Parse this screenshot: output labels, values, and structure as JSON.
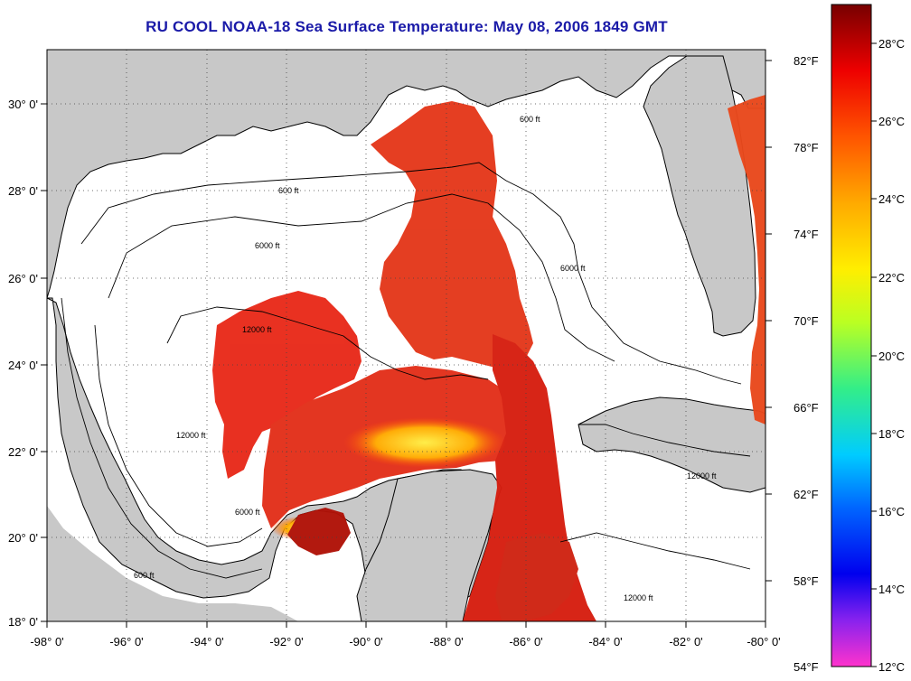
{
  "title": "RU COOL  NOAA-18  Sea Surface Temperature:  May 08, 2006 1849 GMT",
  "map": {
    "lon_range": [
      -98,
      -80
    ],
    "lat_range": [
      18,
      31
    ],
    "lon_ticks": [
      "-98° 0'",
      "-96° 0'",
      "-94° 0'",
      "-92° 0'",
      "-90° 0'",
      "-88° 0'",
      "-86° 0'",
      "-84° 0'",
      "-82° 0'",
      "-80° 0'"
    ],
    "lat_ticks": [
      "18° 0'",
      "20° 0'",
      "22° 0'",
      "24° 0'",
      "26° 0'",
      "28° 0'",
      "30° 0'"
    ],
    "grid": "dotted",
    "colors": {
      "land": "#c8c8c8",
      "water_nodata": "#ffffff"
    }
  },
  "contours": [
    "600 ft",
    "6000 ft",
    "12000 ft"
  ],
  "fahrenheit_ticks": [
    "82°F",
    "78°F",
    "74°F",
    "70°F",
    "66°F",
    "62°F",
    "58°F",
    "54°F"
  ],
  "colorbar": {
    "range_c": [
      12,
      29.3
    ],
    "celsius_ticks": [
      "28°C",
      "26°C",
      "24°C",
      "22°C",
      "20°C",
      "18°C",
      "16°C",
      "14°C",
      "12°C"
    ],
    "colors": [
      "#ff33cc",
      "#8822ee",
      "#0000ee",
      "#0099ff",
      "#00ddcc",
      "#55ee55",
      "#ddff00",
      "#ffcc00",
      "#ff8800",
      "#ff2200",
      "#cc0000",
      "#7a0000"
    ]
  }
}
